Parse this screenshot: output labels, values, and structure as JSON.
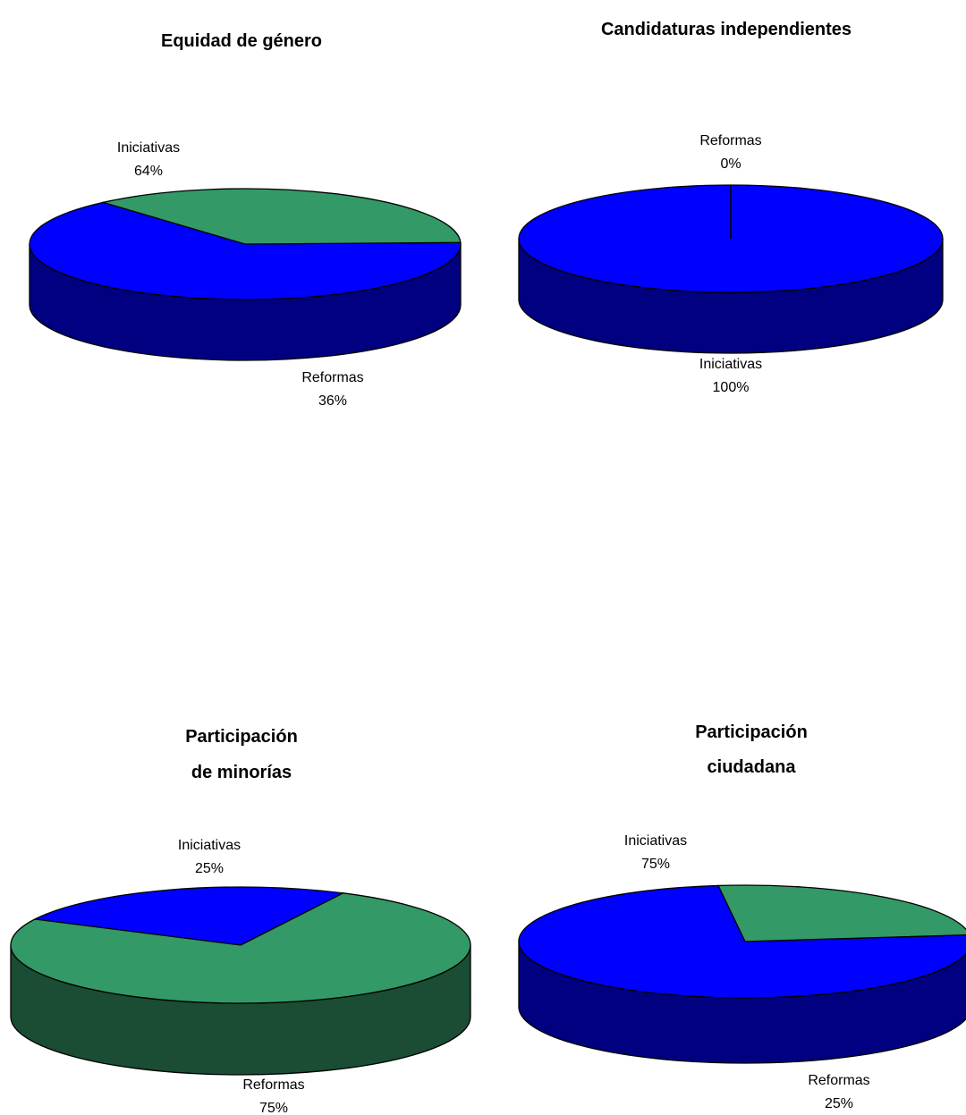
{
  "chart_data": [
    {
      "type": "pie",
      "title": [
        "Equidad de género"
      ],
      "series": [
        {
          "values": [
            64,
            36
          ]
        }
      ],
      "categories": [
        "Iniciativas",
        "Reformas"
      ],
      "value_labels": [
        "64%",
        "36%"
      ]
    },
    {
      "type": "pie",
      "title": [
        "Candidaturas independientes"
      ],
      "series": [
        {
          "values": [
            100,
            0
          ]
        }
      ],
      "categories": [
        "Iniciativas",
        "Reformas"
      ],
      "value_labels": [
        "100%",
        "0%"
      ]
    },
    {
      "type": "pie",
      "title": [
        "Participación",
        "de minorías"
      ],
      "series": [
        {
          "values": [
            25,
            75
          ]
        }
      ],
      "categories": [
        "Iniciativas",
        "Reformas"
      ],
      "value_labels": [
        "25%",
        "75%"
      ]
    },
    {
      "type": "pie",
      "title": [
        "Participación",
        "ciudadana"
      ],
      "series": [
        {
          "values": [
            75,
            25
          ]
        }
      ],
      "categories": [
        "Iniciativas",
        "Reformas"
      ],
      "value_labels": [
        "75%",
        "25%"
      ]
    }
  ],
  "colors": {
    "Iniciativas": {
      "top": "#0000ff",
      "side": "#000080"
    },
    "Reformas": {
      "top": "#339966",
      "side": "#1a4d33"
    }
  }
}
